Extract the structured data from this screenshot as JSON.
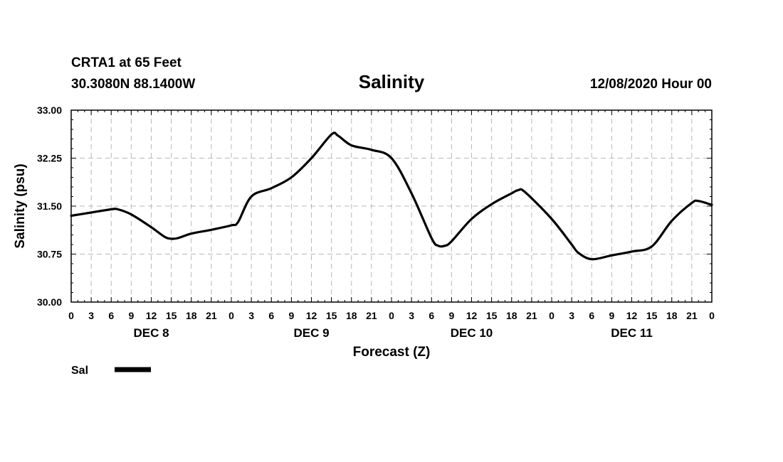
{
  "header": {
    "station": "CRTA1 at 65 Feet",
    "coords": "30.3080N 88.1400W",
    "title": "Salinity",
    "datetime": "12/08/2020 Hour 00"
  },
  "chart_data": {
    "type": "line",
    "title": "Salinity",
    "xlabel": "Forecast (Z)",
    "ylabel": "Salinity (psu)",
    "x_unit": "forecast hour",
    "xlim": [
      0,
      96
    ],
    "ylim": [
      30.0,
      33.0
    ],
    "yticks": [
      "30.00",
      "30.75",
      "31.50",
      "32.25",
      "33.00"
    ],
    "ytick_values": [
      30.0,
      30.75,
      31.5,
      32.25,
      33.0
    ],
    "xtick_labels": [
      "0",
      "3",
      "6",
      "9",
      "12",
      "15",
      "18",
      "21",
      "0",
      "3",
      "6",
      "9",
      "12",
      "15",
      "18",
      "21",
      "0",
      "3",
      "6",
      "9",
      "12",
      "15",
      "18",
      "21",
      "0",
      "3",
      "6",
      "9",
      "12",
      "15",
      "18",
      "21",
      "0"
    ],
    "day_labels": [
      {
        "label": "DEC 8",
        "hour": 12
      },
      {
        "label": "DEC 9",
        "hour": 36
      },
      {
        "label": "DEC 10",
        "hour": 60
      },
      {
        "label": "DEC 11",
        "hour": 84
      }
    ],
    "grid": true,
    "legend": "bottom-left",
    "series": [
      {
        "name": "Sal",
        "color": "#000000",
        "x": [
          0,
          3,
          6,
          7,
          9,
          12,
          14,
          15,
          16,
          18,
          21,
          24,
          25,
          27,
          30,
          33,
          36,
          39,
          40,
          42,
          45,
          48,
          51,
          54,
          55,
          56,
          57,
          60,
          63,
          66,
          67,
          68,
          72,
          75,
          76,
          78,
          81,
          84,
          87,
          90,
          93,
          94,
          96
        ],
        "values": [
          31.35,
          31.4,
          31.45,
          31.45,
          31.37,
          31.17,
          31.02,
          30.99,
          31.0,
          31.07,
          31.13,
          31.2,
          31.25,
          31.65,
          31.78,
          31.95,
          32.25,
          32.62,
          32.6,
          32.45,
          32.38,
          32.25,
          31.7,
          31.0,
          30.88,
          30.88,
          30.95,
          31.3,
          31.53,
          31.7,
          31.75,
          31.72,
          31.3,
          30.9,
          30.77,
          30.67,
          30.73,
          30.79,
          30.87,
          31.27,
          31.55,
          31.58,
          31.52
        ]
      }
    ]
  }
}
